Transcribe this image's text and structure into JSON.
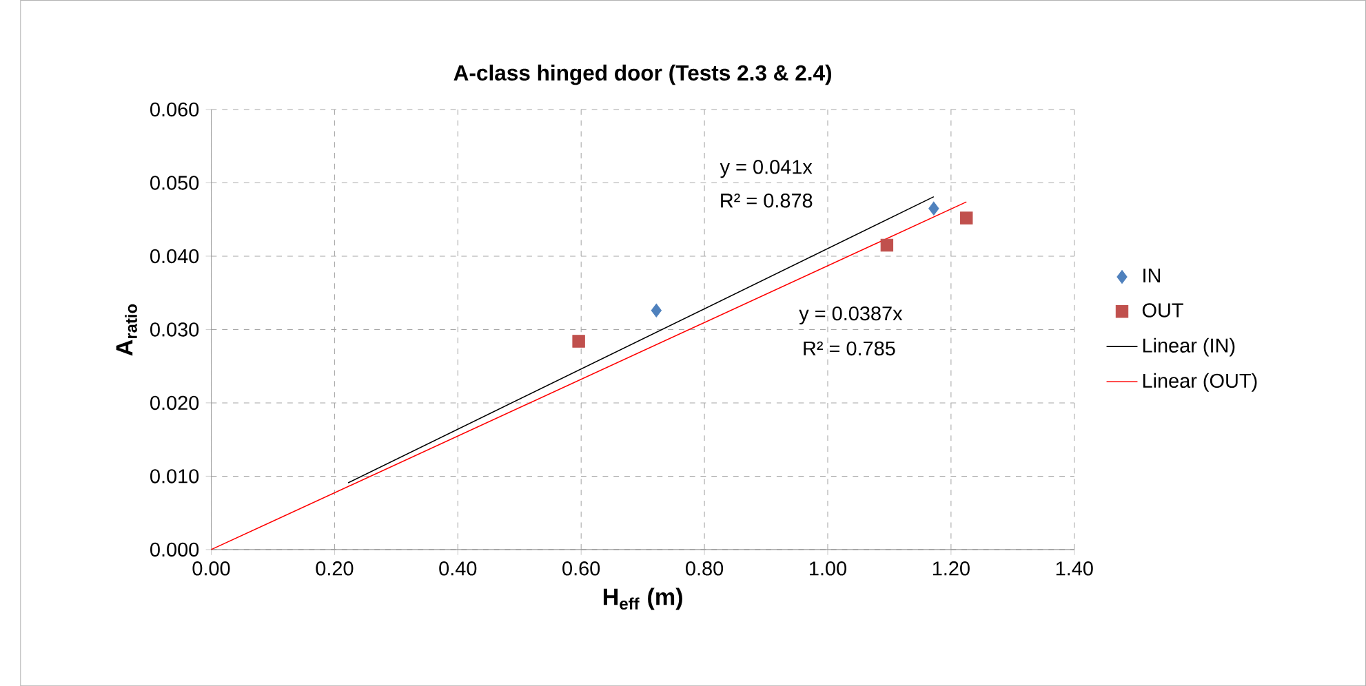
{
  "chart_data": {
    "type": "scatter",
    "title": "A-class hinged door (Tests 2.3 & 2.4)",
    "xlabel": "H$_{eff}$ (m)",
    "ylabel": "A$_{ratio}$",
    "xlim": [
      0,
      1.4
    ],
    "ylim": [
      0,
      0.06
    ],
    "xticks": [
      {
        "value": 0,
        "label": "0.00"
      },
      {
        "value": 0.2,
        "label": "0.20"
      },
      {
        "value": 0.4,
        "label": "0.40"
      },
      {
        "value": 0.6,
        "label": "0.60"
      },
      {
        "value": 0.8,
        "label": "0.80"
      },
      {
        "value": 1.0,
        "label": "1.00"
      },
      {
        "value": 1.2,
        "label": "1.20"
      },
      {
        "value": 1.4,
        "label": "1.40"
      }
    ],
    "yticks": [
      {
        "value": 0,
        "label": "0.000"
      },
      {
        "value": 0.01,
        "label": "0.010"
      },
      {
        "value": 0.02,
        "label": "0.020"
      },
      {
        "value": 0.03,
        "label": "0.030"
      },
      {
        "value": 0.04,
        "label": "0.040"
      },
      {
        "value": 0.05,
        "label": "0.050"
      },
      {
        "value": 0.06,
        "label": "0.060"
      }
    ],
    "grid": true,
    "legend": "right",
    "series": [
      {
        "name": "IN",
        "marker": "diamond",
        "color": "#4f81bd",
        "x": [
          0.722,
          1.172
        ],
        "values": [
          0.0326,
          0.0465
        ]
      },
      {
        "name": "OUT",
        "marker": "square",
        "color": "#c0504d",
        "x": [
          0.596,
          1.096,
          1.225
        ],
        "values": [
          0.0284,
          0.0415,
          0.0452
        ]
      },
      {
        "name": "Linear (IN)",
        "type": "line",
        "color": "#000000",
        "x": [
          0.222,
          1.172
        ],
        "values": [
          0.0091,
          0.0481
        ]
      },
      {
        "name": "Linear (OUT)",
        "type": "line",
        "color": "#ff0000",
        "x": [
          0,
          1.225
        ],
        "values": [
          0,
          0.0474
        ]
      }
    ],
    "annotations": [
      "y = 0.041x",
      "R² = 0.878",
      "y = 0.0387x",
      "R² = 0.785"
    ]
  }
}
